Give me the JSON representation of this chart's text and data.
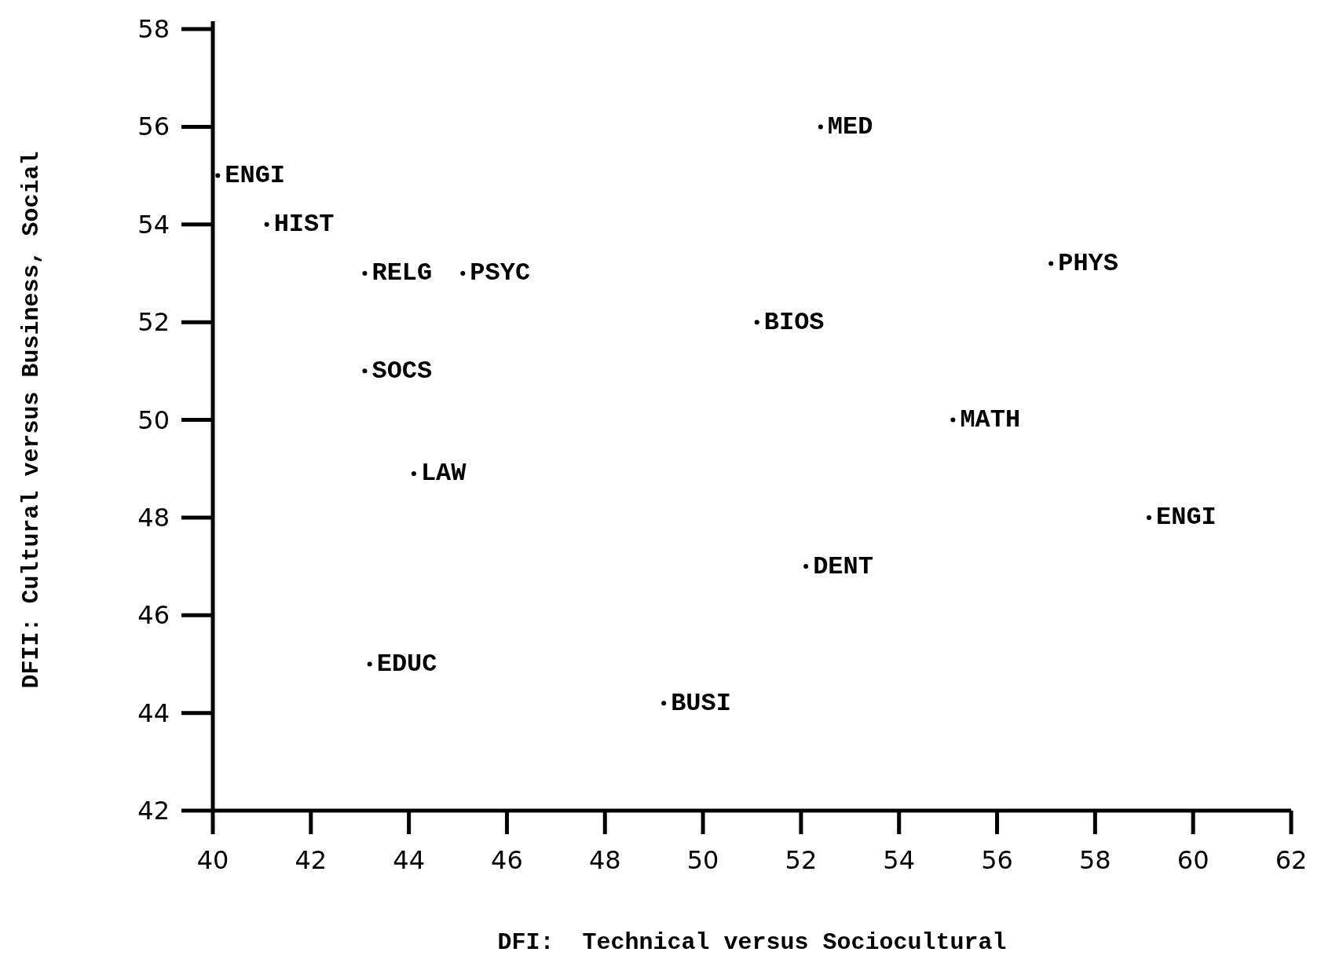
{
  "chart_data": {
    "type": "scatter",
    "xlabel": "DFI:  Technical versus Sociocultural",
    "ylabel": "DFII: Cultural versus Business, Social",
    "xlim": [
      40,
      62
    ],
    "ylim": [
      42,
      58
    ],
    "xticks": [
      40,
      42,
      44,
      46,
      48,
      50,
      52,
      54,
      56,
      58,
      60,
      62
    ],
    "yticks": [
      42,
      44,
      46,
      48,
      50,
      52,
      54,
      56,
      58
    ],
    "marker": "circle",
    "series": [
      {
        "color": "#000000",
        "x": [
          40.1,
          41.1,
          43.1,
          45.1,
          52.4,
          57.1,
          51.1,
          43.1,
          55.1,
          44.1,
          59.1,
          52.1,
          43.2,
          49.2
        ],
        "values": [
          55,
          54,
          53,
          53,
          56,
          53.2,
          52,
          51,
          50,
          48.9,
          48,
          47,
          45,
          44.2
        ],
        "value_labels": [
          "ENGI",
          "HIST",
          "RELG",
          "PSYC",
          "MED",
          "PHYS",
          "BIOS",
          "SOCS",
          "MATH",
          "LAW",
          "ENGI",
          "DENT",
          "EDUC",
          "BUSI"
        ]
      }
    ]
  }
}
